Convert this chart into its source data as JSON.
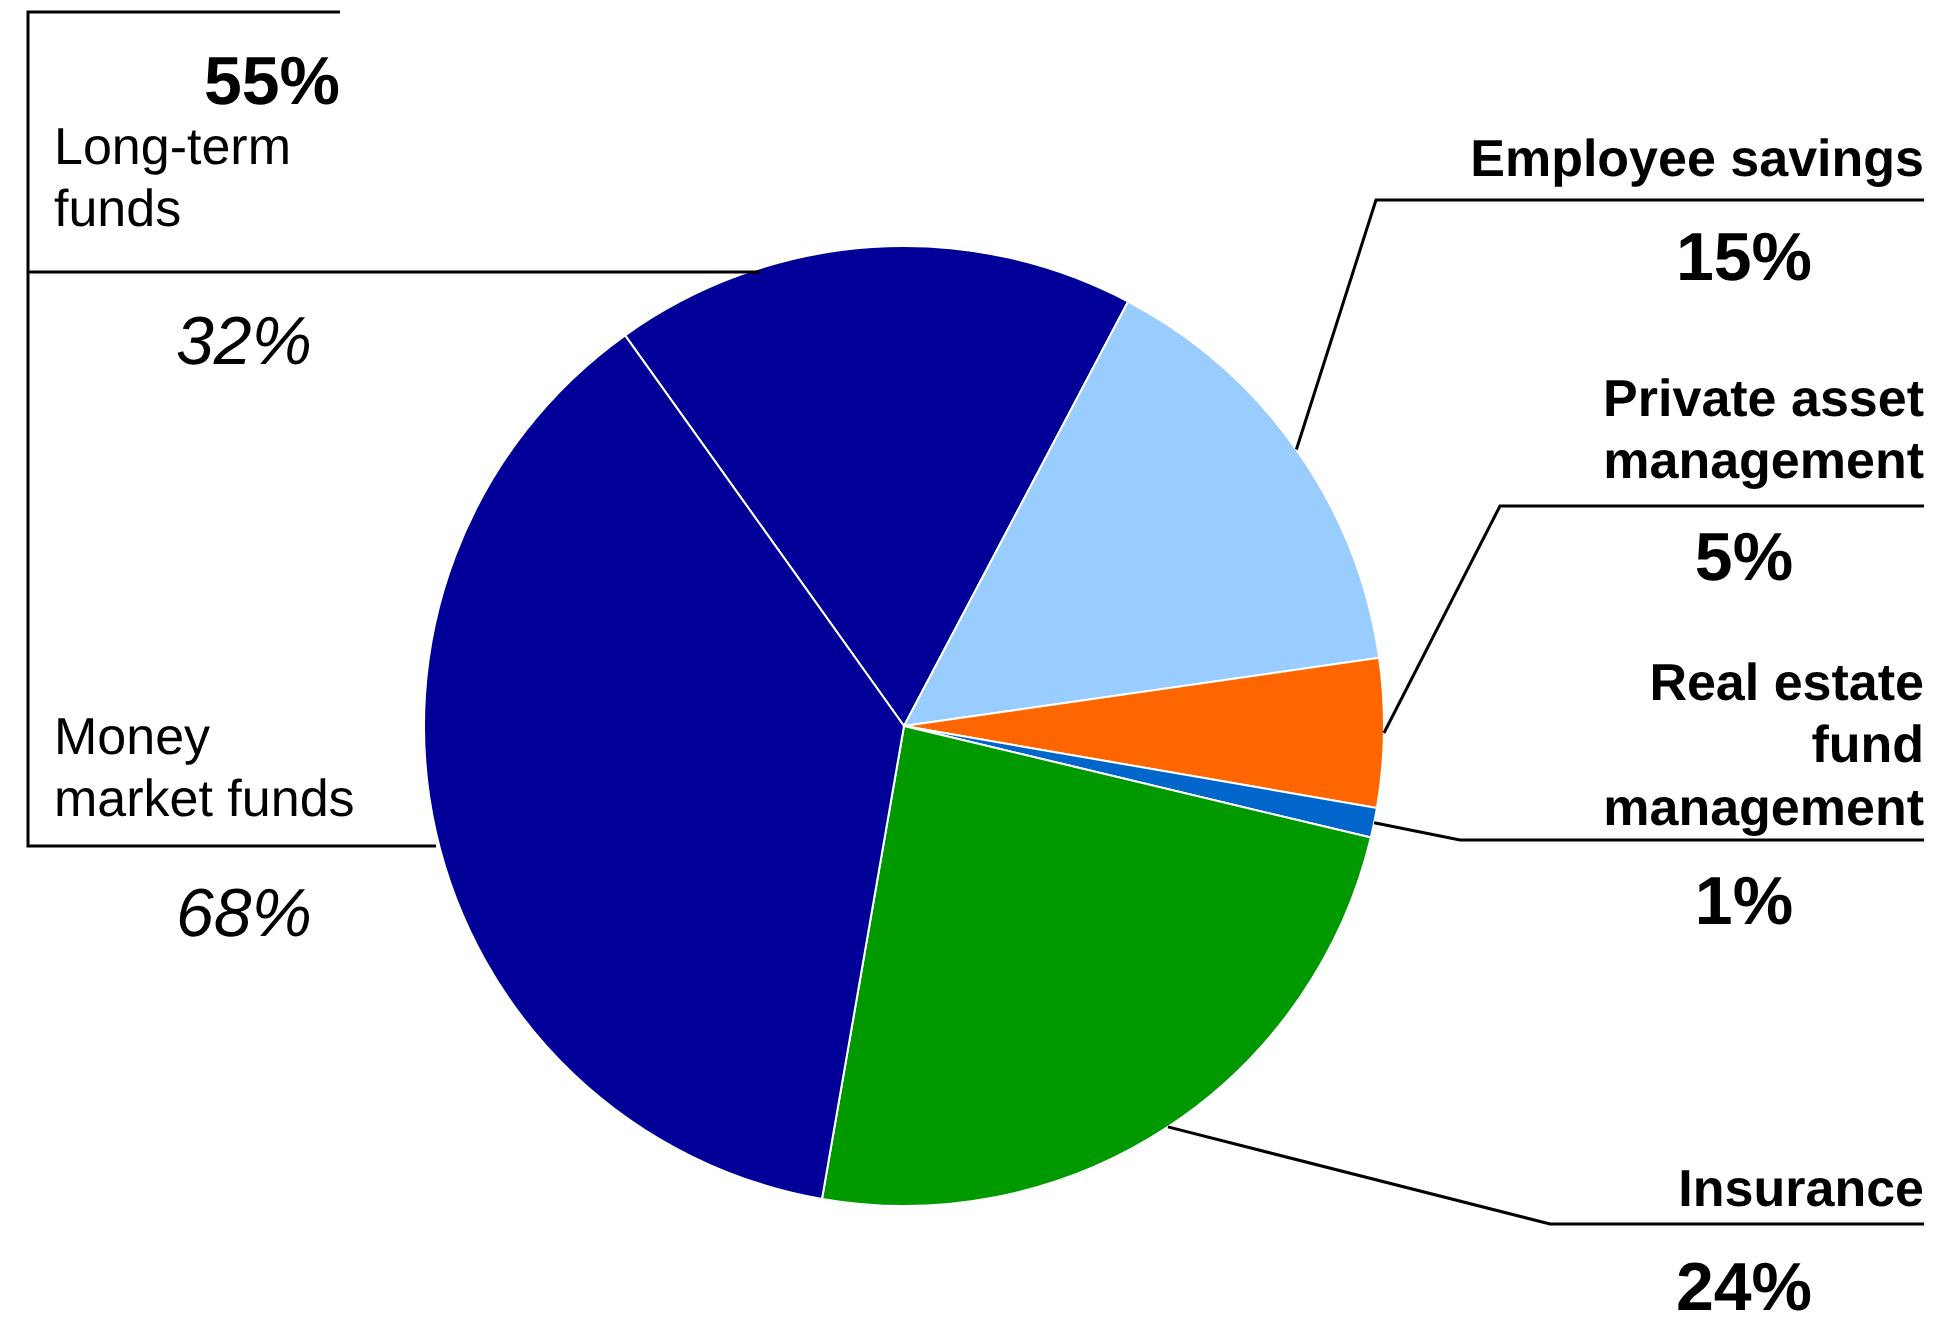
{
  "chart_data": {
    "type": "pie",
    "categories": [
      "Long-term funds",
      "Employee savings",
      "Private asset management",
      "Real estate fund management",
      "Insurance",
      "Money market funds"
    ],
    "values": [
      17.6,
      15,
      5,
      1,
      24,
      37.4
    ],
    "value_labels": [
      null,
      "15%",
      "5%",
      "1%",
      "24%",
      null
    ],
    "colors": [
      "#000099",
      "#99ccff",
      "#ff6600",
      "#0066cc",
      "#009900",
      "#000099"
    ],
    "annotations": [
      "55%",
      "32%",
      "68%"
    ]
  }
}
